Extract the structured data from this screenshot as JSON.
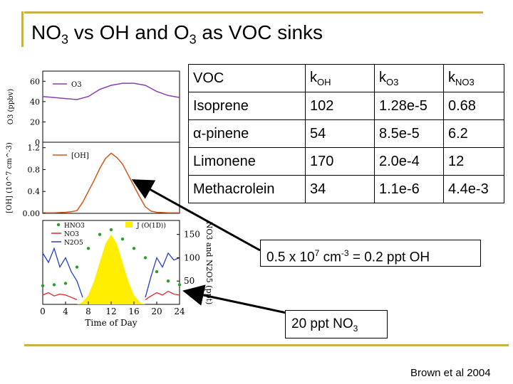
{
  "title": {
    "main": "NO",
    "sub1": "3",
    "mid": " vs OH and O",
    "sub2": "3",
    "end": " as VOC sinks"
  },
  "table": {
    "headers": [
      {
        "main": "VOC",
        "sub": ""
      },
      {
        "main": "k",
        "sub": "OH"
      },
      {
        "main": "k",
        "sub": "O3"
      },
      {
        "main": "k",
        "sub": "NO3"
      }
    ],
    "rows": [
      [
        "Isoprene",
        "102",
        "1.28e-5",
        "0.68"
      ],
      [
        "α-pinene",
        "54",
        "8.5e-5",
        "6.2"
      ],
      [
        "Limonene",
        "170",
        "2.0e-4",
        "12"
      ],
      [
        "Methacrolein",
        "34",
        "1.1e-6",
        "4.4e-3"
      ]
    ]
  },
  "callouts": {
    "oh": {
      "a": "0.5 x 10",
      "sup1": "7",
      "b": " cm",
      "sup2": "-3",
      "c": " = 0.2 ppt OH"
    },
    "no3": {
      "a": "20 ppt NO",
      "sub": "3"
    }
  },
  "credit": "Brown et al 2004",
  "colors": {
    "o3": "#8a3fb4",
    "oh": "#d4561a",
    "hno3": "#2aa02a",
    "no3": "#e0282d",
    "n2o5": "#2440c8",
    "j": "#ffee00",
    "rule": "#c9b04a"
  },
  "chart_data": [
    {
      "type": "line",
      "panel": "top",
      "ylabel": "O3 (ppbv)",
      "ylim": [
        0,
        70
      ],
      "yticks": [
        "60",
        "40",
        "20",
        "0"
      ],
      "legend": [
        "O3"
      ],
      "series": [
        {
          "name": "O3",
          "x": [
            0,
            2,
            4,
            6,
            8,
            10,
            12,
            14,
            16,
            18,
            20,
            22,
            24
          ],
          "values": [
            45,
            44,
            43,
            42,
            45,
            52,
            56,
            58,
            58,
            56,
            50,
            46,
            44
          ]
        }
      ]
    },
    {
      "type": "line",
      "panel": "middle",
      "ylabel": "[OH] (10^7 cm^-3)",
      "ylim": [
        0,
        1.3
      ],
      "yticks": [
        "1.2",
        "0.8",
        "0.4",
        "0.00"
      ],
      "legend": [
        "[OH]"
      ],
      "series": [
        {
          "name": "[OH]",
          "x": [
            0,
            2,
            4,
            5,
            6,
            7,
            8,
            9,
            10,
            11,
            12,
            13,
            14,
            15,
            16,
            17,
            18,
            19,
            20,
            22,
            24
          ],
          "values": [
            0.01,
            0.01,
            0.02,
            0.03,
            0.05,
            0.2,
            0.4,
            0.6,
            0.82,
            1.0,
            1.1,
            1.02,
            0.9,
            0.7,
            0.5,
            0.3,
            0.12,
            0.04,
            0.02,
            0.01,
            0.01
          ]
        }
      ]
    },
    {
      "type": "line",
      "panel": "bottom",
      "xlabel": "Time of Day",
      "xticks": [
        "0",
        "4",
        "8",
        "12",
        "16",
        "20",
        "24"
      ],
      "xlim": [
        0,
        24
      ],
      "ylabel": "NO3 and N2O5 (ppt)",
      "ylim": [
        0,
        180
      ],
      "yticks": [
        "150",
        "100",
        "50"
      ],
      "legend": [
        "HNO3",
        "NO3",
        "N2O5",
        "J (O(1D))"
      ],
      "series": [
        {
          "name": "HNO3",
          "x": [
            0,
            2,
            4,
            6,
            8,
            10,
            12,
            14,
            16,
            18,
            20,
            22,
            24
          ],
          "values": [
            40,
            42,
            45,
            80,
            120,
            150,
            160,
            140,
            120,
            100,
            70,
            50,
            42
          ]
        },
        {
          "name": "NO3",
          "x": [
            0,
            1,
            2,
            3,
            4,
            5,
            6,
            18,
            19,
            20,
            21,
            22,
            23,
            24
          ],
          "values": [
            20,
            25,
            18,
            22,
            20,
            15,
            10,
            10,
            18,
            25,
            20,
            28,
            22,
            20
          ]
        },
        {
          "name": "N2O5",
          "x": [
            0,
            1,
            2,
            3,
            4,
            5,
            6,
            7,
            18,
            19,
            20,
            21,
            22,
            23,
            24
          ],
          "values": [
            110,
            90,
            120,
            80,
            100,
            70,
            50,
            15,
            15,
            60,
            100,
            80,
            110,
            95,
            100
          ]
        },
        {
          "name": "J (O(1D))",
          "x": [
            6,
            7,
            8,
            9,
            10,
            11,
            12,
            13,
            14,
            15,
            16,
            17,
            18
          ],
          "values": [
            0,
            5,
            20,
            50,
            90,
            130,
            150,
            130,
            90,
            50,
            20,
            5,
            0
          ]
        }
      ]
    }
  ]
}
